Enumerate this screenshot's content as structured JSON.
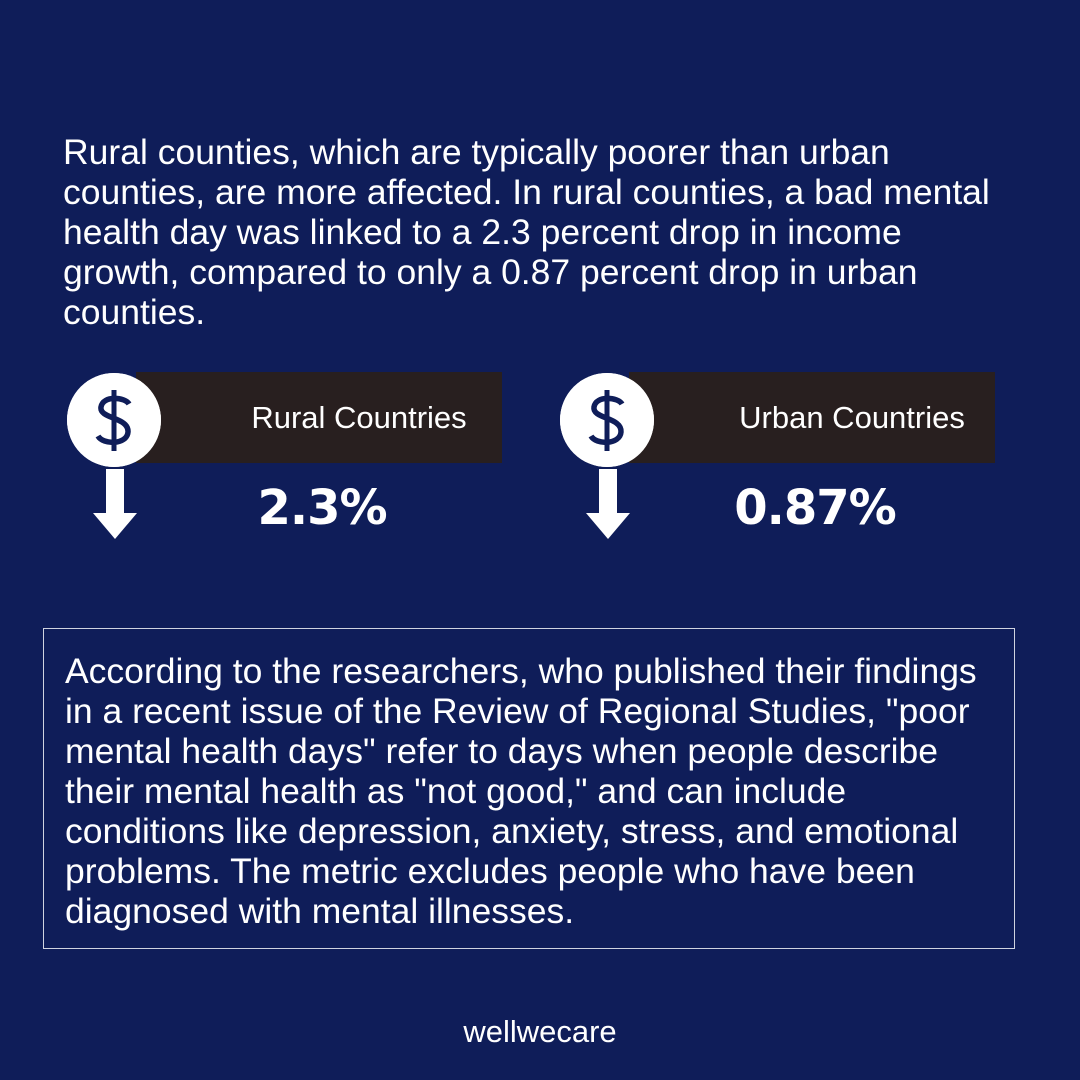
{
  "intro": "Rural counties, which are typically poorer than urban counties, are more affected. In rural counties, a bad mental health day was linked to a 2.3 percent drop in income growth, compared to only a 0.87 percent drop in urban counties.",
  "stats": [
    {
      "label": "Rural Countries",
      "value": "2.3%"
    },
    {
      "label": "Urban Countries",
      "value": "0.87%"
    }
  ],
  "note": "According to the researchers, who published their findings in a recent issue of the Review of Regional Studies, \"poor mental health days\" refer to days when people describe their mental health as \"not good,\" and can include conditions like depression, anxiety, stress, and emotional problems. The metric excludes people who have been diagnosed with mental illnesses.",
  "brand": "wellwecare",
  "colors": {
    "background": "#0f1d59",
    "label_bar": "#281f1f",
    "text": "#ffffff"
  },
  "icons": [
    "dollar-coin-icon",
    "down-arrow-icon"
  ]
}
